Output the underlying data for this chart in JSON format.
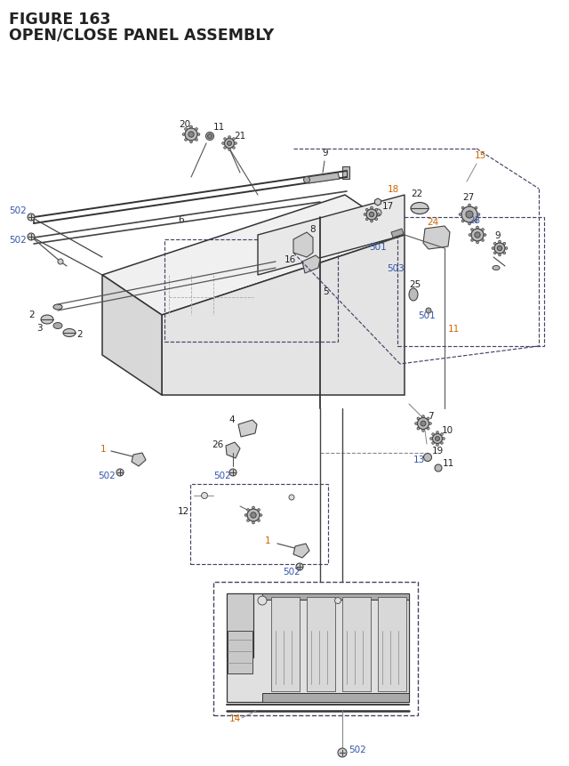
{
  "title_line1": "FIGURE 163",
  "title_line2": "OPEN/CLOSE PANEL ASSEMBLY",
  "bg_color": "#ffffff",
  "title_color": "#1a1a2e",
  "title_fontsize": 12.5,
  "fig_width": 6.4,
  "fig_height": 8.62,
  "black": "#222222",
  "orange": "#cc6600",
  "blue": "#3355aa",
  "gray": "#666666",
  "lightgray": "#aaaaaa",
  "dashed_color": "#444466"
}
